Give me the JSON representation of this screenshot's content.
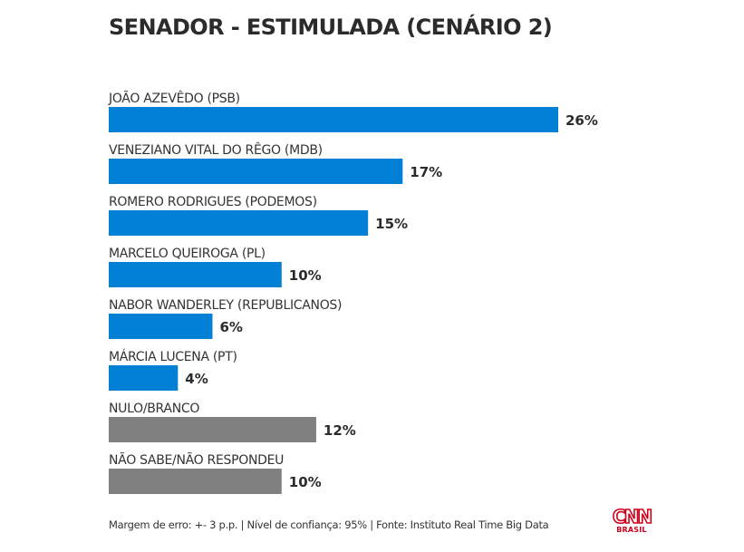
{
  "chart_data": {
    "type": "bar",
    "orientation": "horizontal",
    "title": "SENADOR - ESTIMULADA (CENÁRIO 2)",
    "xlabel": "",
    "ylabel": "",
    "unit": "%",
    "xlim": [
      0,
      26
    ],
    "grid": false,
    "legend": "none",
    "categories": [
      "JOÃO AZEVÊDO (PSB)",
      "VENEZIANO VITAL DO RÊGO (MDB)",
      "ROMERO RODRIGUES (PODEMOS)",
      "MARCELO QUEIROGA (PL)",
      "NABOR WANDERLEY (REPUBLICANOS)",
      "MÁRCIA LUCENA (PT)",
      "NULO/BRANCO",
      "NÃO SABE/NÃO RESPONDEU"
    ],
    "values": [
      26,
      17,
      15,
      10,
      6,
      4,
      12,
      10
    ],
    "value_labels": [
      "26%",
      "17%",
      "15%",
      "10%",
      "6%",
      "4%",
      "12%",
      "10%"
    ],
    "bar_colors": [
      "#0280d5",
      "#0280d5",
      "#0280d5",
      "#0280d5",
      "#0280d5",
      "#0280d5",
      "#808080",
      "#808080"
    ],
    "colors": {
      "candidate": "#0280d5",
      "other": "#808080"
    }
  },
  "footer": {
    "note": "Margem de erro: +- 3 p.p. | Nível de confiança: 95% | Fonte: Instituto Real Time Big Data"
  },
  "brand": {
    "logo_main": "CNN",
    "logo_sub": "BRASIL",
    "color": "#d0021b"
  }
}
